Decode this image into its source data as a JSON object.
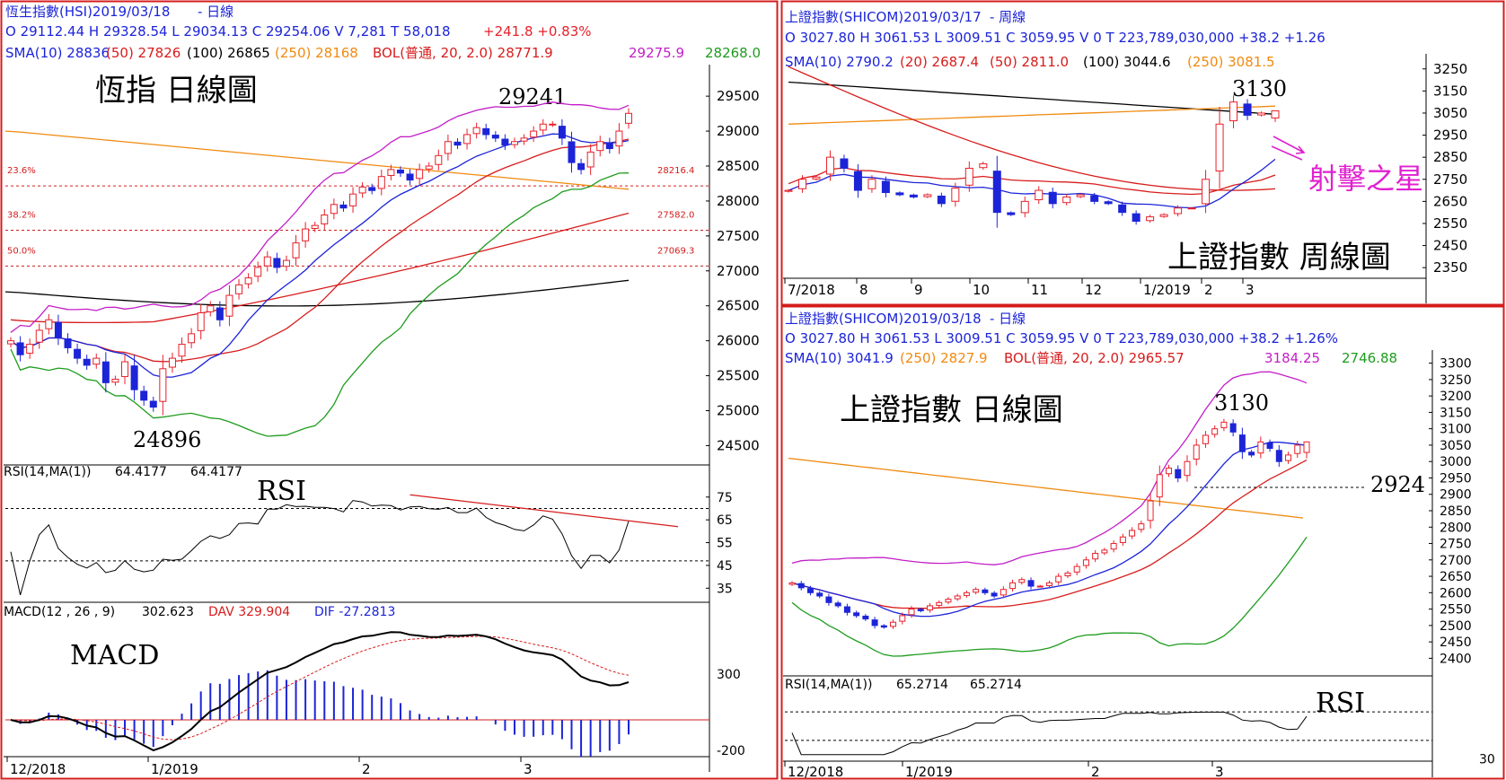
{
  "panels": {
    "hsi": {
      "header1": {
        "name": "恆生指數(HSI)2019/03/18",
        "period": "- 日線",
        "ohlc": "O 29112.44  H 29328.54  L 29034.13  C 29254.06  V 7,281  T 58,018",
        "change": "+241.8  +0.83%"
      },
      "header2": {
        "sma10": "SMA(10) 28836",
        "sma50": "(50) 27826",
        "sma100": "(100) 26865",
        "sma250": "(250) 28168",
        "bol": "BOL(普通, 20, 2.0)  28771.9",
        "bol_up": "29275.9",
        "bol_dn": "28268.0"
      },
      "title": "恆指 日線圖",
      "annot_high": "29241",
      "annot_low": "24896",
      "fib": [
        {
          "label": "23.6%",
          "value": "28216.4"
        },
        {
          "label": "38.2%",
          "value": "27582.0"
        },
        {
          "label": "50.0%",
          "value": "27069.3"
        }
      ],
      "rsi_header": {
        "label": "RSI(14,MA(1))",
        "v1": "64.4177",
        "v2": "64.4177"
      },
      "rsi_title": "RSI",
      "macd_header": {
        "label": "MACD(12 , 26 , 9)",
        "v": "302.623",
        "dav": "DAV  329.904",
        "dif": "DIF  -27.2813"
      },
      "macd_title": "MACD",
      "xticks": [
        "12/2018",
        "1/2019",
        "2",
        "3"
      ]
    },
    "sh_weekly": {
      "header1": {
        "name": "上證指數(SHICOM)2019/03/17",
        "period": "- 周線"
      },
      "header2": "O 3027.80  H 3061.53  L 3009.51  C 3059.95  V 0  T 223,789,030,000   +38.2   +1.26",
      "header3": {
        "sma10": "SMA(10) 2790.2",
        "sma20": "(20) 2687.4",
        "sma50": "(50) 2811.0",
        "sma100": "(100) 3044.6",
        "sma250": "(250) 3081.5"
      },
      "annot_high": "3130",
      "annot_star": "射擊之星",
      "title": "上證指數 周線圖",
      "xticks": [
        "7/2018",
        "8",
        "9",
        "10",
        "11",
        "12",
        "1/2019",
        "2",
        "3"
      ]
    },
    "sh_daily": {
      "header1": {
        "name": "上證指數(SHICOM)2019/03/18",
        "period": "- 日線"
      },
      "header2": "O 3027.80  H 3061.53  L 3009.51  C 3059.95  V 0  T 223,789,030,000   +38.2  +1.26%",
      "header3": {
        "sma10": "SMA(10) 3041.9",
        "sma250": "(250) 2827.9",
        "bol": "BOL(普通, 20, 2.0)  2965.57",
        "bol_up": "3184.25",
        "bol_dn": "2746.88"
      },
      "title": "上證指數 日線圖",
      "annot_high": "3130",
      "annot_support": "2924",
      "rsi_header": {
        "label": "RSI(14,MA(1))",
        "v1": "65.2714",
        "v2": "65.2714"
      },
      "rsi_title": "RSI",
      "xticks": [
        "12/2018",
        "1/2019",
        "2",
        "3"
      ]
    }
  },
  "colors": {
    "up": "#e8202a",
    "down": "#1c24d8",
    "sma10": "#1c24d8",
    "sma50": "#d81c1c",
    "sma100": "#000000",
    "sma250": "#f08a10",
    "bol_up": "#c21ec8",
    "bol_dn": "#1e9c1e",
    "frame_red": "#d41c1c",
    "magenta": "#e020d0"
  },
  "chart_data": [
    {
      "type": "candlestick",
      "title": "恆指 日線圖",
      "series_name": "恆生指數(HSI)",
      "period": "daily",
      "ylim": [
        24300,
        29900
      ],
      "yticks": [
        24500,
        25000,
        25500,
        26000,
        26500,
        27000,
        27500,
        28000,
        28500,
        29000,
        29500
      ],
      "last_ohlc": {
        "open": 29112.44,
        "high": 29328.54,
        "low": 29034.13,
        "close": 29254.06
      },
      "close_approx": [
        26000,
        25800,
        25950,
        26150,
        26300,
        26050,
        25900,
        25750,
        25650,
        25750,
        25400,
        25450,
        25700,
        25300,
        25150,
        25050,
        25600,
        25750,
        25950,
        26100,
        26400,
        26500,
        26300,
        26650,
        26800,
        26900,
        27050,
        27200,
        27050,
        27150,
        27400,
        27600,
        27650,
        27800,
        27950,
        27900,
        28100,
        28200,
        28150,
        28350,
        28450,
        28400,
        28300,
        28450,
        28500,
        28650,
        28850,
        28800,
        28950,
        29050,
        28950,
        28900,
        28800,
        28850,
        28900,
        29000,
        29100,
        29100,
        28900,
        28550,
        28450,
        28700,
        28850,
        28750,
        29000,
        29254
      ],
      "sma_labels": {
        "SMA10": 28836,
        "SMA50": 27826,
        "SMA100": 26865,
        "SMA250": 28168
      },
      "bollinger": {
        "mid": 28771.9,
        "upper": 29275.9,
        "lower": 28268.0
      },
      "fibonacci": {
        "23.6%": 28216.4,
        "38.2%": 27582.0,
        "50.0%": 27069.3
      },
      "annotations": {
        "high": 29241,
        "low": 24896
      },
      "rsi": {
        "ylim": [
          30,
          82
        ],
        "yticks": [
          35,
          45,
          55,
          65,
          75
        ],
        "guides": [
          70,
          30
        ],
        "last": 64.4177
      },
      "macd": {
        "yticks": [
          300,
          -200
        ],
        "macd": 302.623,
        "dav": 329.904,
        "dif": -27.2813
      },
      "xticks": [
        "12/2018",
        "1/2019",
        "2",
        "3"
      ]
    },
    {
      "type": "candlestick",
      "title": "上證指數 周線圖",
      "series_name": "上證指數(SHICOM)",
      "period": "weekly",
      "ylim": [
        2310,
        3310
      ],
      "yticks": [
        2350,
        2450,
        2550,
        2650,
        2750,
        2850,
        2950,
        3050,
        3150,
        3250
      ],
      "last_ohlc": {
        "open": 3027.8,
        "high": 3061.53,
        "low": 3009.51,
        "close": 3059.95
      },
      "close_approx": [
        2700,
        2750,
        2760,
        2850,
        2800,
        2700,
        2750,
        2690,
        2680,
        2670,
        2680,
        2640,
        2710,
        2800,
        2820,
        2600,
        2590,
        2650,
        2700,
        2640,
        2670,
        2680,
        2650,
        2640,
        2600,
        2560,
        2580,
        2590,
        2620,
        2620,
        2750,
        3000,
        3100,
        3040,
        3050,
        3060
      ],
      "sma_labels": {
        "SMA10": 2790.2,
        "SMA20": 2687.4,
        "SMA50": 2811.0,
        "SMA100": 3044.6,
        "SMA250": 3081.5
      },
      "annotations": {
        "high": 3130,
        "shooting_star": "射擊之星"
      },
      "xticks": [
        "7/2018",
        "8",
        "9",
        "10",
        "11",
        "12",
        "1/2019",
        "2",
        "3"
      ]
    },
    {
      "type": "candlestick",
      "title": "上證指數 日線圖",
      "series_name": "上證指數(SHICOM)",
      "period": "daily",
      "ylim": [
        2360,
        3340
      ],
      "yticks": [
        2400,
        2450,
        2500,
        2550,
        2600,
        2650,
        2700,
        2750,
        2800,
        2850,
        2900,
        2950,
        3000,
        3050,
        3100,
        3150,
        3200,
        3250,
        3300
      ],
      "last_ohlc": {
        "open": 3027.8,
        "high": 3061.53,
        "low": 3009.51,
        "close": 3059.95
      },
      "close_approx": [
        2630,
        2615,
        2600,
        2590,
        2570,
        2560,
        2540,
        2530,
        2520,
        2500,
        2495,
        2510,
        2530,
        2550,
        2545,
        2560,
        2570,
        2580,
        2590,
        2600,
        2610,
        2600,
        2590,
        2610,
        2630,
        2640,
        2620,
        2620,
        2630,
        2650,
        2660,
        2680,
        2700,
        2720,
        2730,
        2750,
        2770,
        2790,
        2810,
        2880,
        2960,
        2980,
        2950,
        3000,
        3050,
        3080,
        3100,
        3120,
        3090,
        3030,
        3020,
        3060,
        3040,
        3000,
        3020,
        3050,
        3060
      ],
      "sma_labels": {
        "SMA10": 3041.9,
        "SMA250": 2827.9
      },
      "bollinger": {
        "mid": 2965.57,
        "upper": 3184.25,
        "lower": 2746.88
      },
      "annotations": {
        "high": 3130,
        "support": 2924
      },
      "rsi": {
        "ytick": 30,
        "last": 65.2714
      },
      "xticks": [
        "12/2018",
        "1/2019",
        "2",
        "3"
      ]
    }
  ]
}
